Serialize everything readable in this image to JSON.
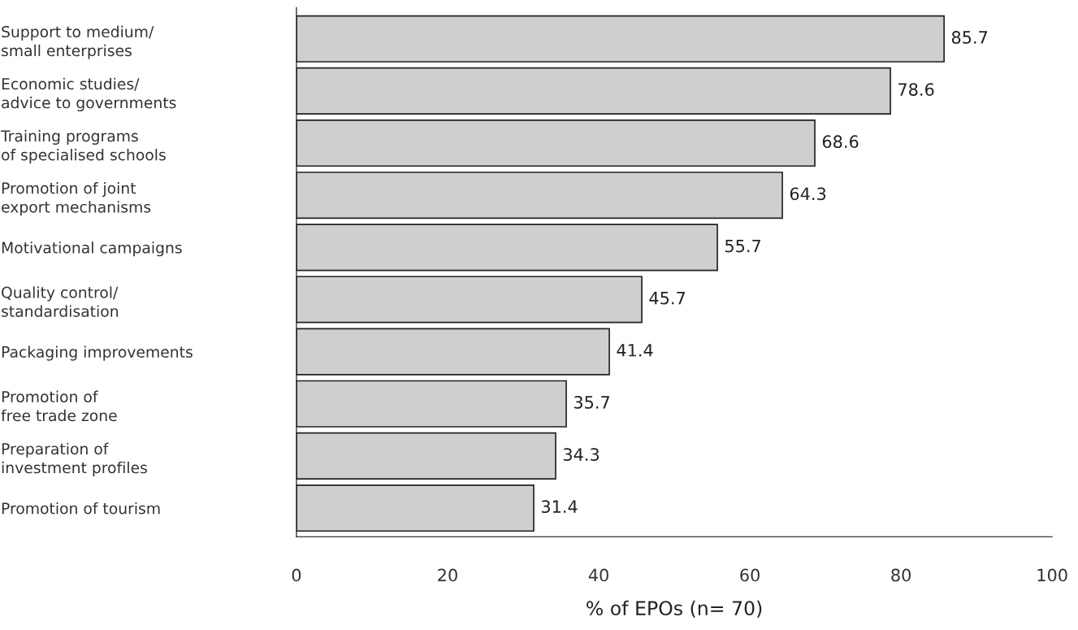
{
  "chart_data": {
    "type": "bar",
    "orientation": "horizontal",
    "categories": [
      "Support to medium/\nsmall enterprises",
      "Economic studies/\nadvice to governments",
      "Training programs\nof specialised schools",
      "Promotion of joint\nexport mechanisms",
      "Motivational campaigns",
      "Quality control/\nstandardisation",
      "Packaging improvements",
      "Promotion of\nfree trade zone",
      "Preparation of\ninvestment profiles",
      "Promotion of tourism"
    ],
    "values": [
      85.7,
      78.6,
      68.6,
      64.3,
      55.7,
      45.7,
      41.4,
      35.7,
      34.3,
      31.4
    ],
    "color": "#cfcfcf",
    "xlabel": "% of EPOs (n= 70)",
    "xlim": [
      0,
      100
    ],
    "xticks": [
      0,
      20,
      40,
      60,
      80,
      100
    ],
    "data_labels": true,
    "grid": false,
    "legend": false
  }
}
